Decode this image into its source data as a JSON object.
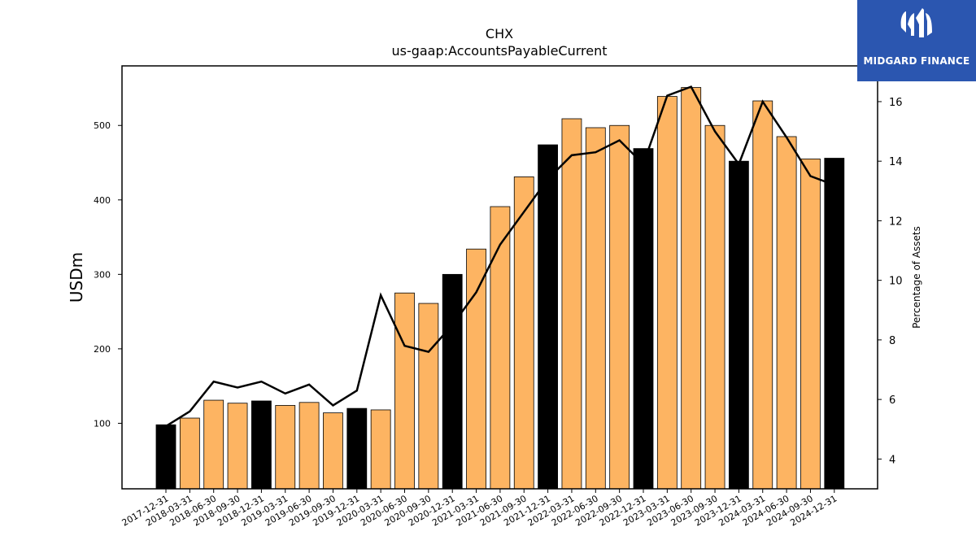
{
  "title": "CHX",
  "subtitle": "us-gaap:AccountsPayableCurrent",
  "logo": {
    "text": "MIDGARD FINANCE",
    "background": "#2b56b0"
  },
  "colors": {
    "quarter_bar": "#fdb462",
    "year_end_bar": "#000000",
    "line": "#000000"
  },
  "chart_data": {
    "type": "bar",
    "ylabel": "USDm",
    "y2label": "Percentage of Assets",
    "ylim": [
      12,
      580
    ],
    "y2lim": [
      3,
      17.2
    ],
    "yticks": [
      100,
      200,
      300,
      400,
      500
    ],
    "y2ticks": [
      4,
      6,
      8,
      10,
      12,
      14,
      16
    ],
    "categories": [
      "2017-12-31",
      "2018-03-31",
      "2018-06-30",
      "2018-09-30",
      "2018-12-31",
      "2019-03-31",
      "2019-06-30",
      "2019-09-30",
      "2019-12-31",
      "2020-03-31",
      "2020-06-30",
      "2020-09-30",
      "2020-12-31",
      "2021-03-31",
      "2021-06-30",
      "2021-09-30",
      "2021-12-31",
      "2022-03-31",
      "2022-06-30",
      "2022-09-30",
      "2022-12-31",
      "2023-03-31",
      "2023-06-30",
      "2023-09-30",
      "2023-12-31",
      "2024-03-31",
      "2024-06-30",
      "2024-09-30",
      "2024-12-31"
    ],
    "series": [
      {
        "type": "bar",
        "values": [
          98,
          107,
          131,
          127,
          130,
          124,
          128,
          114,
          120,
          118,
          275,
          261,
          300,
          334,
          391,
          431,
          474,
          509,
          497,
          500,
          469,
          539,
          551,
          500,
          452,
          533,
          485,
          455,
          456
        ],
        "year_end": [
          true,
          false,
          false,
          false,
          true,
          false,
          false,
          false,
          true,
          false,
          false,
          false,
          true,
          false,
          false,
          false,
          true,
          false,
          false,
          false,
          true,
          false,
          false,
          false,
          true,
          false,
          false,
          false,
          true
        ]
      },
      {
        "type": "line",
        "axis": "right",
        "values": [
          5.1,
          5.6,
          6.6,
          6.4,
          6.6,
          6.2,
          6.5,
          5.8,
          6.3,
          9.5,
          7.8,
          7.6,
          8.5,
          9.6,
          11.2,
          12.3,
          13.4,
          14.2,
          14.3,
          14.7,
          13.9,
          16.2,
          16.5,
          15.0,
          13.9,
          16.0,
          14.8,
          13.5,
          13.2
        ]
      }
    ]
  }
}
